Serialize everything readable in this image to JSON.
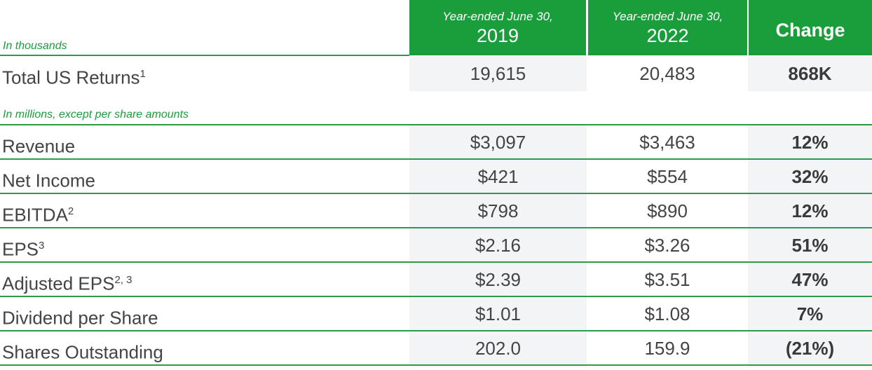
{
  "header": {
    "col1": {
      "sub": "Year-ended June 30,",
      "year": "2019"
    },
    "col2": {
      "sub": "Year-ended June 30,",
      "year": "2022"
    },
    "col3": "Change"
  },
  "notes": {
    "thousands": "In thousands",
    "millions": "In millions, except per share amounts"
  },
  "returns_row": {
    "label": "Total US Returns",
    "sup": "1",
    "v2019": "19,615",
    "v2022": "20,483",
    "change": "868K"
  },
  "rows": [
    {
      "label": "Revenue",
      "sup": "",
      "v2019": "$3,097",
      "v2022": "$3,463",
      "change": "12%"
    },
    {
      "label": "Net Income",
      "sup": "",
      "v2019": "$421",
      "v2022": "$554",
      "change": "32%"
    },
    {
      "label": "EBITDA",
      "sup": "2",
      "v2019": "$798",
      "v2022": "$890",
      "change": "12%"
    },
    {
      "label": "EPS",
      "sup": "3",
      "v2019": "$2.16",
      "v2022": "$3.26",
      "change": "51%"
    },
    {
      "label": "Adjusted EPS",
      "sup": "2, 3",
      "v2019": "$2.39",
      "v2022": "$3.51",
      "change": "47%"
    },
    {
      "label": "Dividend per Share",
      "sup": "",
      "v2019": "$1.01",
      "v2022": "$1.08",
      "change": "7%"
    },
    {
      "label": "Shares Outstanding",
      "sup": "",
      "v2019": "202.0",
      "v2022": "159.9",
      "change": "(21%)"
    }
  ],
  "colors": {
    "green": "#1a9e3c",
    "band": "#f3f4f6",
    "text": "#444444"
  }
}
